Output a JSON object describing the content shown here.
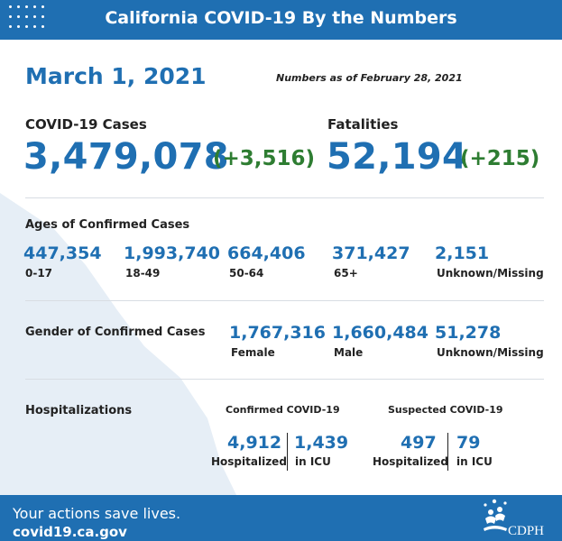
{
  "header": {
    "title": "California COVID-19 By the Numbers"
  },
  "date": "March 1, 2021",
  "as_of": "Numbers as of February 28, 2021",
  "cases": {
    "label": "COVID-19 Cases",
    "value": "3,479,078",
    "delta": "(+3,516)"
  },
  "fatalities": {
    "label": "Fatalities",
    "value": "52,194",
    "delta": "(+215)"
  },
  "ages": {
    "label": "Ages of Confirmed Cases",
    "items": [
      {
        "value": "447,354",
        "label": "0-17"
      },
      {
        "value": "1,993,740",
        "label": "18-49"
      },
      {
        "value": "664,406",
        "label": "50-64"
      },
      {
        "value": "371,427",
        "label": "65+"
      },
      {
        "value": "2,151",
        "label": "Unknown/Missing"
      }
    ]
  },
  "gender": {
    "label": "Gender of Confirmed Cases",
    "items": [
      {
        "value": "1,767,316",
        "label": "Female"
      },
      {
        "value": "1,660,484",
        "label": "Male"
      },
      {
        "value": "51,278",
        "label": "Unknown/Missing"
      }
    ]
  },
  "hospitalizations": {
    "label": "Hospitalizations",
    "confirmed": {
      "heading": "Confirmed COVID-19",
      "hospitalized_value": "4,912",
      "hospitalized_label": "Hospitalized",
      "icu_value": "1,439",
      "icu_label": "in ICU"
    },
    "suspected": {
      "heading": "Suspected COVID-19",
      "hospitalized_value": "497",
      "hospitalized_label": "Hospitalized",
      "icu_value": "79",
      "icu_label": "in ICU"
    }
  },
  "footer": {
    "tagline": "Your actions save lives.",
    "url": "covid19.ca.gov",
    "logo_text": "CDPH"
  },
  "colors": {
    "primary_blue": "#1f6fb2",
    "delta_green": "#2e7d32",
    "map_tint": "#e6eef6"
  },
  "icons": {
    "logo": "cdph-logo-icon",
    "header_decoration": "dot-grid-icon"
  }
}
